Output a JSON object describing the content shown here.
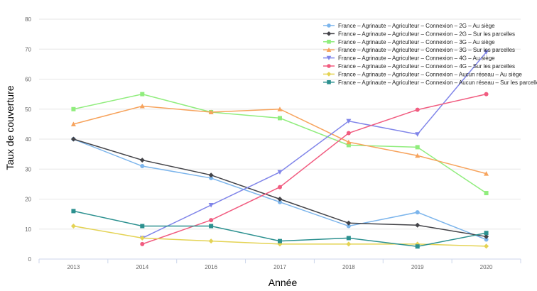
{
  "chart_data": {
    "type": "line",
    "xlabel": "Année",
    "ylabel": "Taux de couverture",
    "categories": [
      "2013",
      "2014",
      "2016",
      "2017",
      "2018",
      "2019",
      "2020"
    ],
    "ylim": [
      0,
      80
    ],
    "yticks": [
      0,
      10,
      20,
      30,
      40,
      50,
      60,
      70,
      80
    ],
    "grid": true,
    "legend_position": "top-right",
    "series": [
      {
        "name": "France – Agrinaute – Agriculteur – Connexion – 2G – Au siège",
        "color": "#7cb5ec",
        "marker": "circle",
        "values": [
          40,
          31,
          27,
          19,
          11,
          15.6,
          6.5
        ]
      },
      {
        "name": "France – Agrinaute – Agriculteur – Connexion – 2G – Sur les parcelles",
        "color": "#434348",
        "marker": "diamond",
        "values": [
          40,
          33,
          28,
          20,
          12,
          11.3,
          7.5
        ]
      },
      {
        "name": "France – Agrinaute – Agriculteur – Connexion – 3G – Au siège",
        "color": "#90ed7d",
        "marker": "square",
        "values": [
          50,
          55,
          49,
          47,
          38,
          37.3,
          22
        ]
      },
      {
        "name": "France – Agrinaute – Agriculteur – Connexion – 3G – Sur les parcelles",
        "color": "#f7a35c",
        "marker": "triangle",
        "values": [
          45,
          51,
          49,
          50,
          39,
          34.5,
          28.5
        ]
      },
      {
        "name": "France – Agrinaute – Agriculteur – Connexion – 4G – Au siège",
        "color": "#8085e9",
        "marker": "triangle-down",
        "values": [
          null,
          7,
          18,
          29,
          46,
          41.6,
          69
        ]
      },
      {
        "name": "France – Agrinaute – Agriculteur – Connexion – 4G – Sur les parcelles",
        "color": "#f15c80",
        "marker": "circle",
        "values": [
          null,
          5,
          13,
          24,
          42,
          49.8,
          55
        ]
      },
      {
        "name": "France – Agrinaute – Agriculteur – Connexion – Aucun réseau – Au siège",
        "color": "#e4d354",
        "marker": "diamond",
        "values": [
          11,
          7,
          6,
          5,
          5,
          5,
          4.3
        ]
      },
      {
        "name": "France – Agrinaute – Agriculteur – Connexion – Aucun réseau – Sur les parcelles",
        "color": "#2b908f",
        "marker": "square",
        "values": [
          16,
          11,
          11,
          6,
          7,
          4.2,
          8.7
        ]
      }
    ]
  }
}
